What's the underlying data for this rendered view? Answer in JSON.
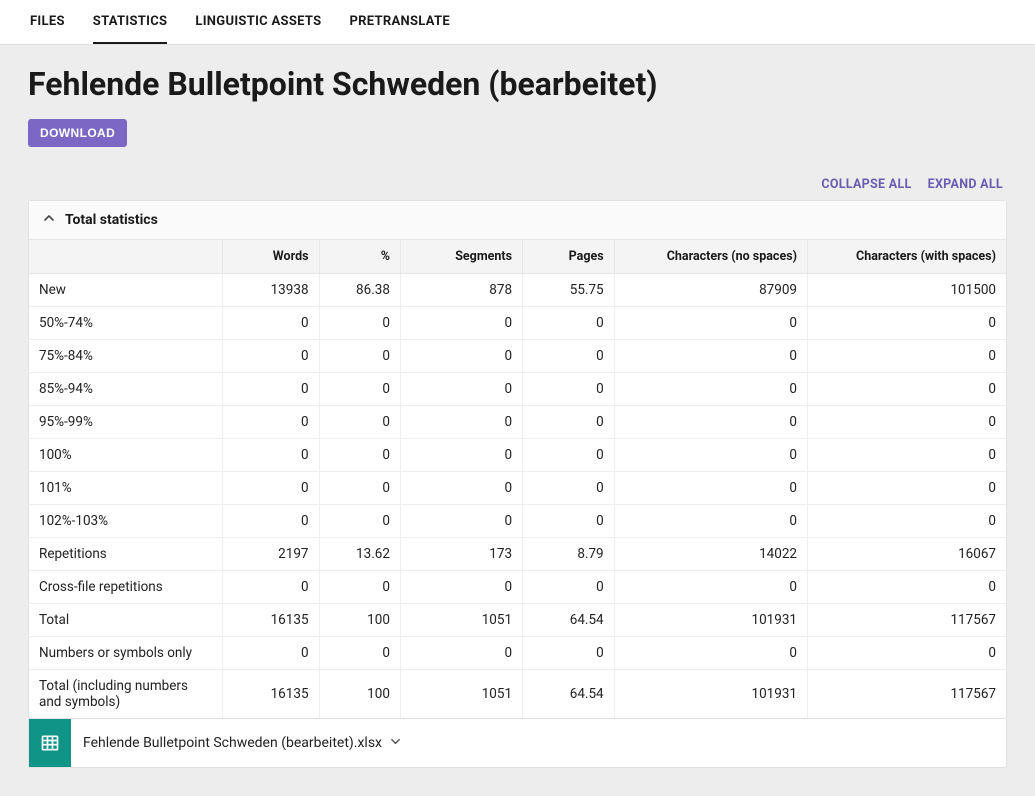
{
  "tabs": {
    "items": [
      "FILES",
      "STATISTICS",
      "LINGUISTIC ASSETS",
      "PRETRANSLATE"
    ],
    "active_index": 1
  },
  "page": {
    "title": "Fehlende Bulletpoint Schweden (bearbeitet)",
    "download_label": "DOWNLOAD"
  },
  "toolbar": {
    "collapse_all": "COLLAPSE ALL",
    "expand_all": "EXPAND ALL"
  },
  "panel": {
    "title": "Total statistics"
  },
  "table": {
    "columns": [
      "",
      "Words",
      "%",
      "Segments",
      "Pages",
      "Characters (no spaces)",
      "Characters (with spaces)"
    ],
    "rows": [
      [
        "New",
        "13938",
        "86.38",
        "878",
        "55.75",
        "87909",
        "101500"
      ],
      [
        "50%-74%",
        "0",
        "0",
        "0",
        "0",
        "0",
        "0"
      ],
      [
        "75%-84%",
        "0",
        "0",
        "0",
        "0",
        "0",
        "0"
      ],
      [
        "85%-94%",
        "0",
        "0",
        "0",
        "0",
        "0",
        "0"
      ],
      [
        "95%-99%",
        "0",
        "0",
        "0",
        "0",
        "0",
        "0"
      ],
      [
        "100%",
        "0",
        "0",
        "0",
        "0",
        "0",
        "0"
      ],
      [
        "101%",
        "0",
        "0",
        "0",
        "0",
        "0",
        "0"
      ],
      [
        "102%-103%",
        "0",
        "0",
        "0",
        "0",
        "0",
        "0"
      ],
      [
        "Repetitions",
        "2197",
        "13.62",
        "173",
        "8.79",
        "14022",
        "16067"
      ],
      [
        "Cross-file repetitions",
        "0",
        "0",
        "0",
        "0",
        "0",
        "0"
      ],
      [
        "Total",
        "16135",
        "100",
        "1051",
        "64.54",
        "101931",
        "117567"
      ],
      [
        "Numbers or symbols only",
        "0",
        "0",
        "0",
        "0",
        "0",
        "0"
      ],
      [
        "Total (including numbers and symbols)",
        "16135",
        "100",
        "1051",
        "64.54",
        "101931",
        "117567"
      ]
    ]
  },
  "file": {
    "name": "Fehlende Bulletpoint Schweden (bearbeitet).xlsx"
  },
  "colors": {
    "accent": "#7b68c4",
    "link": "#6a5caf",
    "file_icon_bg": "#0f9487",
    "page_bg": "#ededed"
  }
}
